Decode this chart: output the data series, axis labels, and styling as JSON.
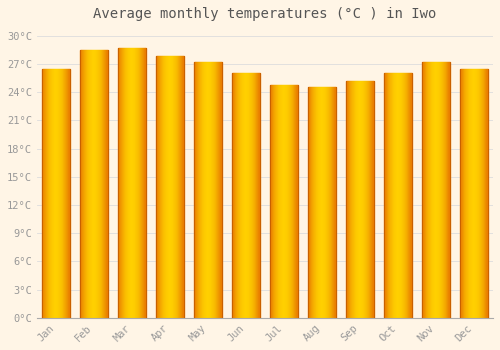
{
  "title": "Average monthly temperatures (°C ) in Iwo",
  "months": [
    "Jan",
    "Feb",
    "Mar",
    "Apr",
    "May",
    "Jun",
    "Jul",
    "Aug",
    "Sep",
    "Oct",
    "Nov",
    "Dec"
  ],
  "values": [
    26.5,
    28.5,
    28.7,
    27.8,
    27.2,
    26.0,
    24.8,
    24.5,
    25.2,
    26.0,
    27.2,
    26.5
  ],
  "bar_color_center": "#FFD000",
  "bar_color_edge": "#E87800",
  "background_color": "#FFF5E6",
  "grid_color": "#dddddd",
  "yticks": [
    0,
    3,
    6,
    9,
    12,
    15,
    18,
    21,
    24,
    27,
    30
  ],
  "ytick_labels": [
    "0°C",
    "3°C",
    "6°C",
    "9°C",
    "12°C",
    "15°C",
    "18°C",
    "21°C",
    "24°C",
    "27°C",
    "30°C"
  ],
  "ylim": [
    0,
    31
  ],
  "title_fontsize": 10,
  "tick_fontsize": 7.5,
  "font_color": "#999999",
  "title_color": "#555555"
}
